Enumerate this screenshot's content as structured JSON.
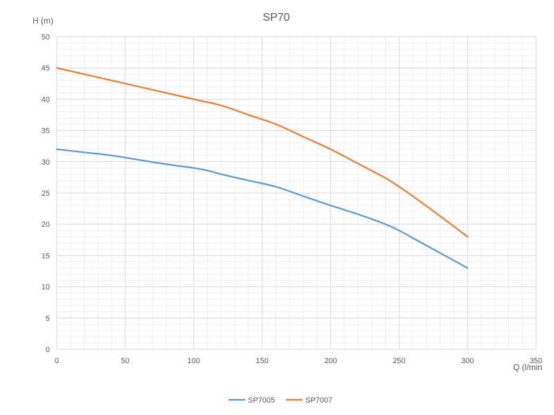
{
  "chart_data": {
    "type": "line",
    "title": "SP70",
    "xlabel": "Q (l/min",
    "ylabel": "H (m)",
    "xlim": [
      0,
      350
    ],
    "ylim": [
      0,
      50
    ],
    "x_ticks": [
      0,
      50,
      100,
      150,
      200,
      250,
      300,
      350
    ],
    "y_ticks": [
      0,
      5,
      10,
      15,
      20,
      25,
      30,
      35,
      40,
      45,
      50
    ],
    "grid": true,
    "minor_grid": true,
    "legend_position": "bottom",
    "series": [
      {
        "name": "SP7005",
        "color": "#5B9BD5",
        "x": [
          0,
          20,
          40,
          60,
          80,
          100,
          110,
          120,
          140,
          160,
          180,
          200,
          220,
          240,
          250,
          260,
          280,
          300
        ],
        "y": [
          32,
          31.5,
          31,
          30.3,
          29.6,
          29,
          28.6,
          28,
          27,
          26,
          24.5,
          23,
          21.6,
          20,
          19,
          17.8,
          15.4,
          13
        ]
      },
      {
        "name": "SP7007",
        "color": "#ED7D31",
        "x": [
          0,
          20,
          40,
          60,
          80,
          100,
          120,
          140,
          160,
          180,
          200,
          220,
          240,
          250,
          260,
          280,
          300
        ],
        "y": [
          45,
          44,
          43,
          42,
          41,
          40,
          39,
          37.5,
          36,
          34,
          32,
          29.7,
          27.4,
          26,
          24.5,
          21.3,
          18
        ]
      }
    ]
  }
}
